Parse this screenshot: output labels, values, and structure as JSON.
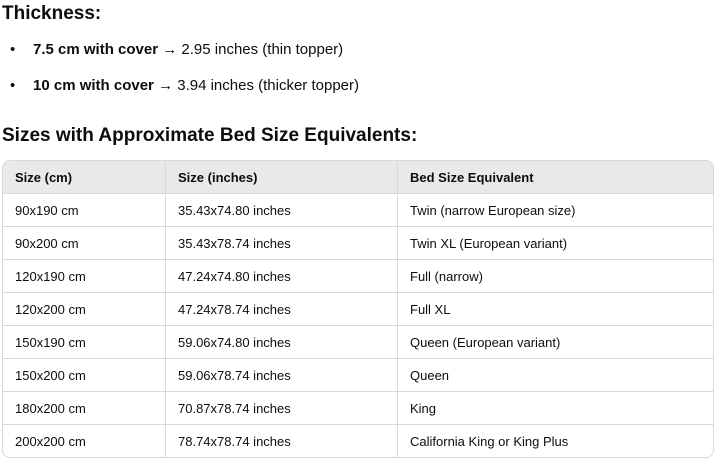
{
  "thickness": {
    "heading": "Thickness:",
    "items": [
      {
        "bold": "7.5 cm with cover",
        "arrow": "→",
        "rest": "2.95 inches (thin topper)"
      },
      {
        "bold": "10 cm with cover",
        "arrow": "→",
        "rest": "3.94 inches (thicker topper)"
      }
    ]
  },
  "sizes": {
    "heading": "Sizes with Approximate Bed Size Equivalents:",
    "headers": [
      "Size (cm)",
      "Size (inches)",
      "Bed Size Equivalent"
    ],
    "rows": [
      [
        "90x190 cm",
        "35.43x74.80 inches",
        "Twin (narrow European size)"
      ],
      [
        "90x200 cm",
        "35.43x78.74 inches",
        "Twin XL (European variant)"
      ],
      [
        "120x190 cm",
        "47.24x74.80 inches",
        "Full (narrow)"
      ],
      [
        "120x200 cm",
        "47.24x78.74 inches",
        "Full XL"
      ],
      [
        "150x190 cm",
        "59.06x74.80 inches",
        "Queen (European variant)"
      ],
      [
        "150x200 cm",
        "59.06x78.74 inches",
        "Queen"
      ],
      [
        "180x200 cm",
        "70.87x78.74 inches",
        "King"
      ],
      [
        "200x200 cm",
        "78.74x78.74 inches",
        "California King or King Plus"
      ]
    ]
  }
}
